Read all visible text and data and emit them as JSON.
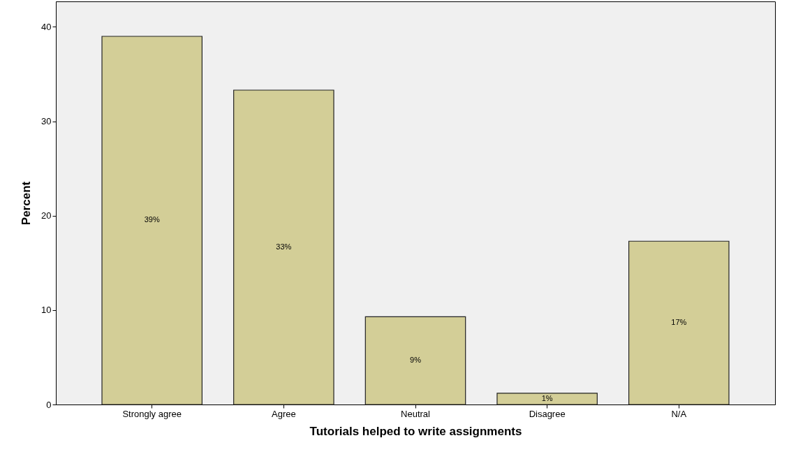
{
  "chart_data": {
    "type": "bar",
    "xlabel": "Tutorials helped to write assignments",
    "ylabel": "Percent",
    "categories": [
      "Strongly agree",
      "Agree",
      "Neutral",
      "Disagree",
      "N/A"
    ],
    "values": [
      39.0,
      33.3,
      9.3,
      1.2,
      17.3
    ],
    "value_labels": [
      "39%",
      "33%",
      "9%",
      "1%",
      "17%"
    ],
    "color": "#d3ce97",
    "ylim": [
      0,
      42.7
    ],
    "yticks": [
      0,
      10,
      20,
      30,
      40
    ],
    "grid": false
  }
}
